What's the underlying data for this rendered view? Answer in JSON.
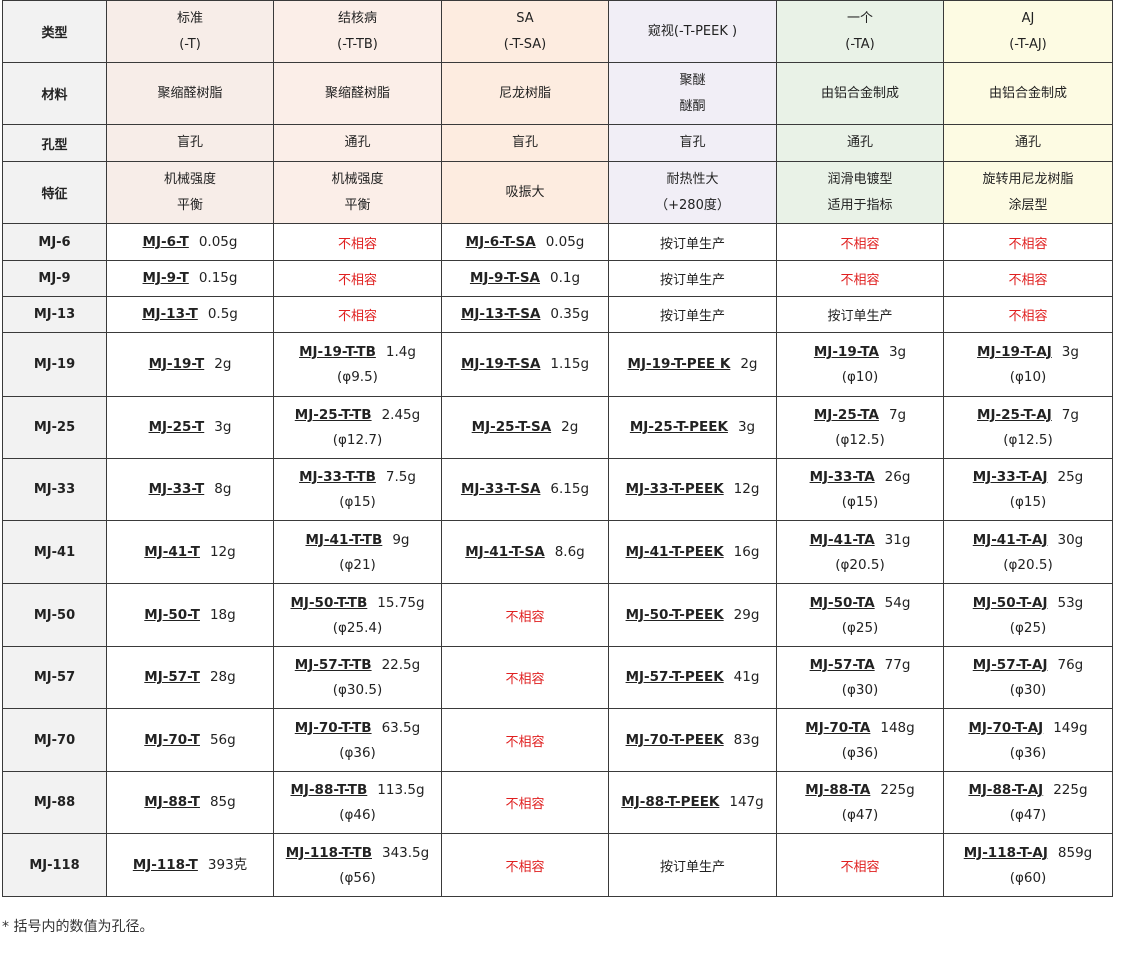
{
  "header_rows": [
    {
      "label": "类型",
      "cells": [
        {
          "lines": [
            "标准",
            "(-T)"
          ]
        },
        {
          "lines": [
            "结核病",
            "(-T-TB)"
          ]
        },
        {
          "lines": [
            "SA",
            "(-T-SA)"
          ]
        },
        {
          "lines": [
            "",
            "窥视(-T-PEEK )"
          ]
        },
        {
          "lines": [
            "一个",
            "(-TA)"
          ]
        },
        {
          "lines": [
            "AJ",
            "(-T-AJ)"
          ]
        }
      ]
    },
    {
      "label": "材料",
      "cells": [
        {
          "lines": [
            "聚缩醛树脂"
          ]
        },
        {
          "lines": [
            "聚缩醛树脂"
          ]
        },
        {
          "lines": [
            "尼龙树脂"
          ]
        },
        {
          "lines": [
            "聚醚",
            "醚酮"
          ]
        },
        {
          "lines": [
            "由铝合金制成"
          ]
        },
        {
          "lines": [
            "由铝合金制成"
          ]
        }
      ]
    },
    {
      "label": "孔型",
      "cells": [
        {
          "lines": [
            "盲孔"
          ]
        },
        {
          "lines": [
            "通孔"
          ]
        },
        {
          "lines": [
            "盲孔"
          ]
        },
        {
          "lines": [
            "盲孔"
          ]
        },
        {
          "lines": [
            "通孔"
          ]
        },
        {
          "lines": [
            "通孔"
          ]
        }
      ]
    },
    {
      "label": "特征",
      "cells": [
        {
          "lines": [
            "机械强度",
            "平衡"
          ]
        },
        {
          "lines": [
            "机械强度",
            "平衡"
          ]
        },
        {
          "lines": [
            "吸振大"
          ]
        },
        {
          "lines": [
            "耐热性大",
            "（+280度）"
          ]
        },
        {
          "lines": [
            "润滑电镀型",
            "适用于指标"
          ]
        },
        {
          "lines": [
            "旋转用尼龙树脂",
            "涂层型"
          ]
        }
      ]
    }
  ],
  "product_rows": [
    {
      "label": "MJ-6",
      "cells": [
        {
          "pn": "MJ-6-T",
          "wt": "0.05g"
        },
        {
          "text": "不相容",
          "incompatible": true
        },
        {
          "pn": "MJ-6-T-SA",
          "wt": "0.05g"
        },
        {
          "text": "按订单生产"
        },
        {
          "text": "不相容",
          "incompatible": true
        },
        {
          "text": "不相容",
          "incompatible": true
        }
      ]
    },
    {
      "label": "MJ-9",
      "cells": [
        {
          "pn": "MJ-9-T",
          "wt": "0.15g"
        },
        {
          "text": "不相容",
          "incompatible": true
        },
        {
          "pn": "MJ-9-T-SA",
          "wt": "0.1g"
        },
        {
          "text": "按订单生产"
        },
        {
          "text": "不相容",
          "incompatible": true
        },
        {
          "text": "不相容",
          "incompatible": true
        }
      ]
    },
    {
      "label": "MJ-13",
      "cells": [
        {
          "pn": "MJ-13-T",
          "wt": "0.5g"
        },
        {
          "text": "不相容",
          "incompatible": true
        },
        {
          "pn": "MJ-13-T-SA",
          "wt": "0.35g"
        },
        {
          "text": "按订单生产"
        },
        {
          "text": "按订单生产"
        },
        {
          "text": "不相容",
          "incompatible": true
        }
      ]
    },
    {
      "label": "MJ-19",
      "cells": [
        {
          "pn": "MJ-19-T",
          "wt": "2g"
        },
        {
          "pn": "MJ-19-T-TB",
          "wt": "1.4g",
          "dia": "(φ9.5)"
        },
        {
          "pn": "MJ-19-T-SA",
          "wt": "1.15g"
        },
        {
          "pn": "MJ-19-T-PEE K",
          "wt": "2g"
        },
        {
          "pn": "MJ-19-TA",
          "wt": "3g",
          "dia": "(φ10)"
        },
        {
          "pn": "MJ-19-T-AJ",
          "wt": "3g",
          "dia": "(φ10)"
        }
      ]
    },
    {
      "label": "MJ-25",
      "cells": [
        {
          "pn": "MJ-25-T",
          "wt": "3g"
        },
        {
          "pn": "MJ-25-T-TB",
          "wt": "2.45g",
          "dia": "(φ12.7)"
        },
        {
          "pn": "MJ-25-T-SA",
          "wt": "2g"
        },
        {
          "pn": "MJ-25-T-PEEK",
          "wt": "3g"
        },
        {
          "pn": "MJ-25-TA",
          "wt": "7g",
          "dia": "(φ12.5)"
        },
        {
          "pn": "MJ-25-T-AJ",
          "wt": "7g",
          "dia": "(φ12.5)"
        }
      ]
    },
    {
      "label": "MJ-33",
      "cells": [
        {
          "pn": "MJ-33-T",
          "wt": "8g"
        },
        {
          "pn": "MJ-33-T-TB",
          "wt": "7.5g",
          "dia": "(φ15)"
        },
        {
          "pn": "MJ-33-T-SA",
          "wt": "6.15g"
        },
        {
          "pn": "MJ-33-T-PEEK",
          "wt": "12g"
        },
        {
          "pn": "MJ-33-TA",
          "wt": "26g",
          "dia": "(φ15)"
        },
        {
          "pn": "MJ-33-T-AJ",
          "wt": "25g",
          "dia": "(φ15)"
        }
      ]
    },
    {
      "label": "MJ-41",
      "cells": [
        {
          "pn": "MJ-41-T",
          "wt": "12g"
        },
        {
          "pn": "MJ-41-T-TB",
          "wt": "9g",
          "dia": "(φ21)"
        },
        {
          "pn": "MJ-41-T-SA",
          "wt": "8.6g"
        },
        {
          "pn": "MJ-41-T-PEEK",
          "wt": "16g"
        },
        {
          "pn": "MJ-41-TA",
          "wt": "31g",
          "dia": "(φ20.5)"
        },
        {
          "pn": "MJ-41-T-AJ",
          "wt": "30g",
          "dia": "(φ20.5)"
        }
      ]
    },
    {
      "label": "MJ-50",
      "cells": [
        {
          "pn": "MJ-50-T",
          "wt": "18g"
        },
        {
          "pn": "MJ-50-T-TB",
          "wt": "15.75g",
          "dia": "(φ25.4)"
        },
        {
          "text": "不相容",
          "incompatible": true
        },
        {
          "pn": "MJ-50-T-PEEK",
          "wt": "29g"
        },
        {
          "pn": "MJ-50-TA",
          "wt": "54g",
          "dia": "(φ25)"
        },
        {
          "pn": "MJ-50-T-AJ",
          "wt": "53g",
          "dia": "(φ25)"
        }
      ]
    },
    {
      "label": "MJ-57",
      "cells": [
        {
          "pn": "MJ-57-T",
          "wt": "28g"
        },
        {
          "pn": "MJ-57-T-TB",
          "wt": "22.5g",
          "dia": "(φ30.5)"
        },
        {
          "text": "不相容",
          "incompatible": true
        },
        {
          "pn": "MJ-57-T-PEEK",
          "wt": "41g"
        },
        {
          "pn": "MJ-57-TA",
          "wt": "77g",
          "dia": "(φ30)"
        },
        {
          "pn": "MJ-57-T-AJ",
          "wt": "76g",
          "dia": "(φ30)"
        }
      ]
    },
    {
      "label": "MJ-70",
      "cells": [
        {
          "pn": "MJ-70-T",
          "wt": "56g"
        },
        {
          "pn": "MJ-70-T-TB",
          "wt": "63.5g",
          "dia": "(φ36)"
        },
        {
          "text": "不相容",
          "incompatible": true
        },
        {
          "pn": "MJ-70-T-PEEK",
          "wt": "83g"
        },
        {
          "pn": "MJ-70-TA",
          "wt": "148g",
          "dia": "(φ36)"
        },
        {
          "pn": "MJ-70-T-AJ",
          "wt": "149g",
          "dia": "(φ36)"
        }
      ]
    },
    {
      "label": "MJ-88",
      "cells": [
        {
          "pn": "MJ-88-T",
          "wt": "85g"
        },
        {
          "pn": "MJ-88-T-TB",
          "wt": "113.5g",
          "dia": "(φ46)"
        },
        {
          "text": "不相容",
          "incompatible": true
        },
        {
          "pn": "MJ-88-T-PEEK",
          "wt": "147g"
        },
        {
          "pn": "MJ-88-TA",
          "wt": "225g",
          "dia": "(φ47)"
        },
        {
          "pn": "MJ-88-T-AJ",
          "wt": "225g",
          "dia": "(φ47)"
        }
      ]
    },
    {
      "label": "MJ-118",
      "cells": [
        {
          "pn": "MJ-118-T",
          "wt": "393克"
        },
        {
          "pn": "MJ-118-T-TB",
          "wt": "343.5g",
          "dia": "(φ56)"
        },
        {
          "text": "不相容",
          "incompatible": true
        },
        {
          "text": "按订单生产"
        },
        {
          "text": "不相容",
          "incompatible": true
        },
        {
          "pn": "MJ-118-T-AJ",
          "wt": "859g",
          "dia": "(φ60)"
        }
      ]
    }
  ],
  "footnote": "* 括号内的数值为孔径。",
  "colors": {
    "border": "#3a3a3a",
    "incompatible_text": "#e02020",
    "row_header_bg": "#f2f2f2",
    "col_backgrounds": [
      "#f7ede8",
      "#fbeee8",
      "#fdece0",
      "#f1eef6",
      "#e9f2e7",
      "#fdfbe3"
    ]
  }
}
